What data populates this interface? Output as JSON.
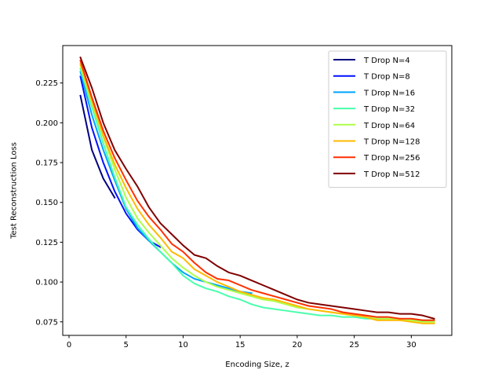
{
  "chart_data": {
    "type": "line",
    "title": "",
    "xlabel": "Encoding Size, z",
    "ylabel": "Test Reconstruction Loss",
    "xlim": [
      -0.55,
      33.55
    ],
    "ylim": [
      0.0665,
      0.2485
    ],
    "xticks": [
      0,
      5,
      10,
      15,
      20,
      25,
      30
    ],
    "yticks": [
      0.075,
      0.1,
      0.125,
      0.15,
      0.175,
      0.2,
      0.225
    ],
    "grid": false,
    "legend_position": "top-right",
    "series": [
      {
        "name": "T Drop N=4",
        "color": "#00007f",
        "x": [
          1,
          2,
          3,
          4
        ],
        "y": [
          0.217,
          0.183,
          0.165,
          0.153
        ]
      },
      {
        "name": "T Drop N=8",
        "color": "#0010ff",
        "x": [
          1,
          2,
          3,
          4,
          5,
          6,
          7,
          8
        ],
        "y": [
          0.229,
          0.197,
          0.175,
          0.157,
          0.143,
          0.133,
          0.126,
          0.122
        ]
      },
      {
        "name": "T Drop N=16",
        "color": "#00a4ff",
        "x": [
          1,
          2,
          3,
          4,
          5,
          6,
          7,
          8,
          9,
          10,
          11,
          12,
          13,
          14,
          15,
          16
        ],
        "y": [
          0.232,
          0.205,
          0.183,
          0.164,
          0.146,
          0.134,
          0.126,
          0.119,
          0.112,
          0.106,
          0.102,
          0.1,
          0.098,
          0.096,
          0.094,
          0.093
        ]
      },
      {
        "name": "T Drop N=32",
        "color": "#4affad",
        "x": [
          1,
          2,
          3,
          4,
          5,
          6,
          7,
          8,
          9,
          10,
          11,
          12,
          13,
          14,
          15,
          16,
          17,
          18,
          19,
          20,
          21,
          22,
          23,
          24,
          25,
          26,
          27,
          28,
          29,
          30,
          31,
          32
        ],
        "y": [
          0.234,
          0.21,
          0.187,
          0.166,
          0.147,
          0.136,
          0.127,
          0.119,
          0.112,
          0.104,
          0.099,
          0.096,
          0.094,
          0.091,
          0.089,
          0.086,
          0.084,
          0.083,
          0.082,
          0.081,
          0.08,
          0.079,
          0.079,
          0.078,
          0.078,
          0.077,
          0.077,
          0.077,
          0.076,
          0.076,
          0.076,
          0.076
        ]
      },
      {
        "name": "T Drop N=64",
        "color": "#adff49",
        "x": [
          1,
          2,
          3,
          4,
          5,
          6,
          7,
          8,
          9,
          10,
          11,
          12,
          13,
          14,
          15,
          16,
          17,
          18,
          19,
          20,
          21,
          22,
          23,
          24,
          25,
          26,
          27,
          28,
          29,
          30,
          31,
          32
        ],
        "y": [
          0.236,
          0.212,
          0.191,
          0.171,
          0.153,
          0.14,
          0.131,
          0.123,
          0.115,
          0.109,
          0.104,
          0.1,
          0.097,
          0.095,
          0.093,
          0.091,
          0.089,
          0.088,
          0.086,
          0.084,
          0.083,
          0.082,
          0.081,
          0.08,
          0.079,
          0.078,
          0.077,
          0.077,
          0.076,
          0.076,
          0.075,
          0.075
        ]
      },
      {
        "name": "T Drop N=128",
        "color": "#ffb900",
        "x": [
          1,
          2,
          3,
          4,
          5,
          6,
          7,
          8,
          9,
          10,
          11,
          12,
          13,
          14,
          15,
          16,
          17,
          18,
          19,
          20,
          21,
          22,
          23,
          24,
          25,
          26,
          27,
          28,
          29,
          30,
          31,
          32
        ],
        "y": [
          0.237,
          0.214,
          0.192,
          0.174,
          0.159,
          0.146,
          0.136,
          0.128,
          0.119,
          0.115,
          0.108,
          0.104,
          0.1,
          0.097,
          0.094,
          0.092,
          0.09,
          0.089,
          0.087,
          0.085,
          0.083,
          0.082,
          0.081,
          0.08,
          0.079,
          0.078,
          0.076,
          0.076,
          0.076,
          0.075,
          0.074,
          0.074
        ]
      },
      {
        "name": "T Drop N=256",
        "color": "#ff3000",
        "x": [
          1,
          2,
          3,
          4,
          5,
          6,
          7,
          8,
          9,
          10,
          11,
          12,
          13,
          14,
          15,
          16,
          17,
          18,
          19,
          20,
          21,
          22,
          23,
          24,
          25,
          26,
          27,
          28,
          29,
          30,
          31,
          32
        ],
        "y": [
          0.239,
          0.216,
          0.195,
          0.178,
          0.164,
          0.151,
          0.141,
          0.133,
          0.124,
          0.119,
          0.112,
          0.106,
          0.102,
          0.101,
          0.098,
          0.095,
          0.093,
          0.091,
          0.089,
          0.087,
          0.085,
          0.084,
          0.083,
          0.081,
          0.08,
          0.079,
          0.078,
          0.078,
          0.077,
          0.077,
          0.076,
          0.076
        ]
      },
      {
        "name": "T Drop N=512",
        "color": "#7f0000",
        "x": [
          1,
          2,
          3,
          4,
          5,
          6,
          7,
          8,
          9,
          10,
          11,
          12,
          13,
          14,
          15,
          16,
          17,
          18,
          19,
          20,
          21,
          22,
          23,
          24,
          25,
          26,
          27,
          28,
          29,
          30,
          31,
          32
        ],
        "y": [
          0.241,
          0.222,
          0.2,
          0.183,
          0.171,
          0.16,
          0.147,
          0.137,
          0.13,
          0.123,
          0.117,
          0.115,
          0.11,
          0.106,
          0.104,
          0.101,
          0.098,
          0.095,
          0.092,
          0.089,
          0.087,
          0.086,
          0.085,
          0.084,
          0.083,
          0.082,
          0.081,
          0.081,
          0.08,
          0.08,
          0.079,
          0.077
        ]
      }
    ]
  }
}
